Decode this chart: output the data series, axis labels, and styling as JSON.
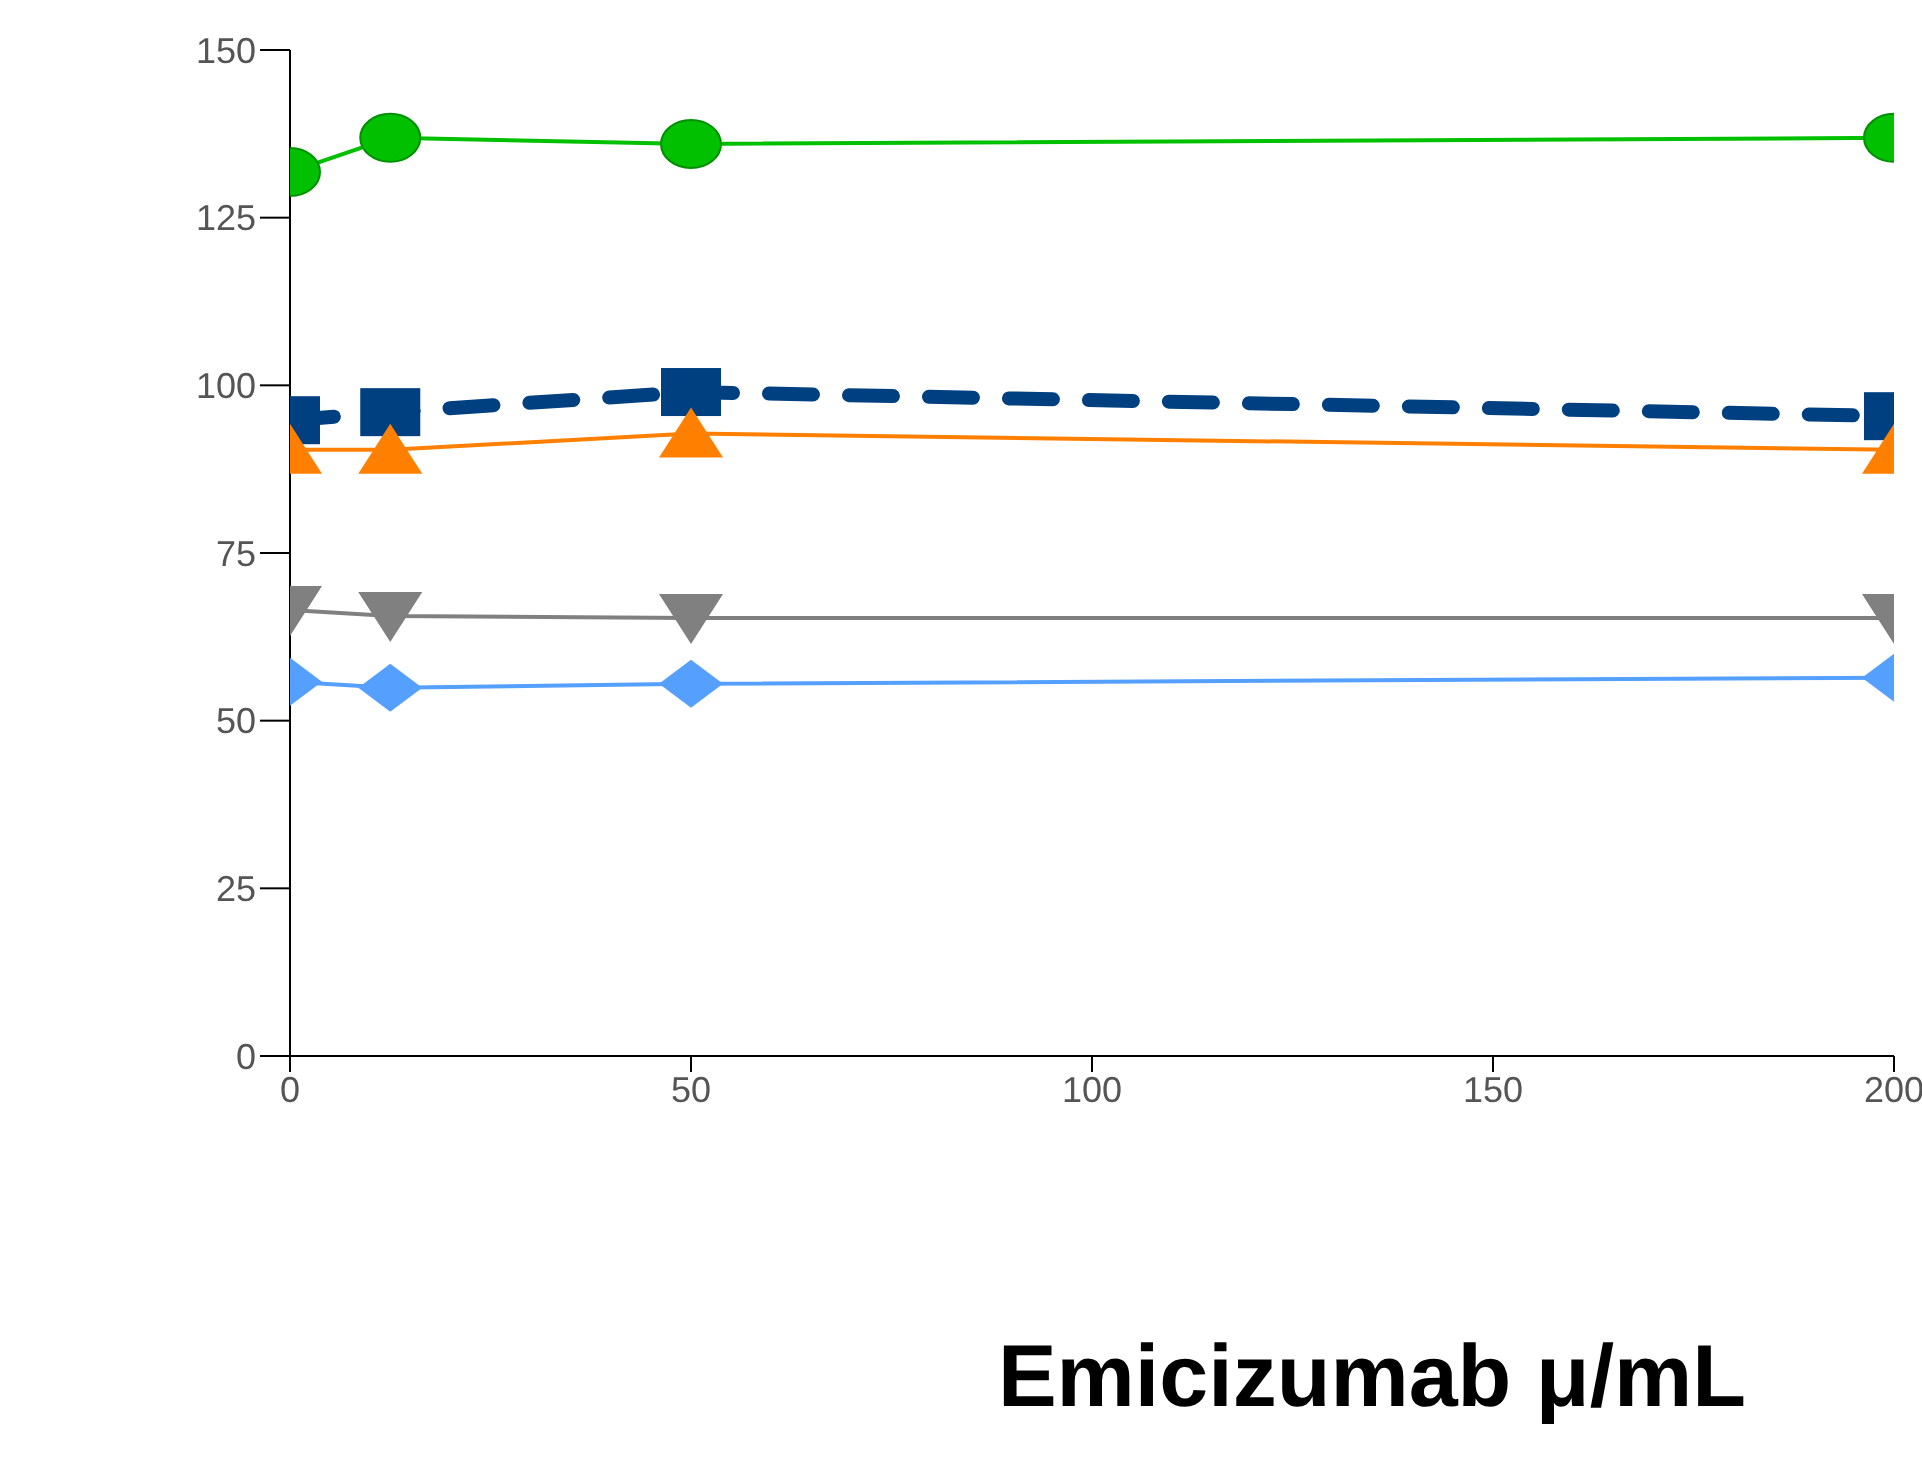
{
  "chart_data": {
    "type": "line",
    "xlabel": "Emicizumab μ/mL",
    "x": [
      0,
      12.5,
      50,
      200
    ],
    "xlim": [
      0,
      200
    ],
    "xticks": [
      0,
      50,
      100,
      150,
      200
    ],
    "ylim": [
      0,
      150
    ],
    "yticks": [
      0,
      25,
      50,
      75,
      100,
      125,
      150
    ],
    "grid": false,
    "legend": false,
    "series": [
      {
        "color": "#00c000",
        "marker": "circle",
        "line_style": "solid",
        "values": [
          131.8,
          136.9,
          136,
          136.9
        ]
      },
      {
        "color": "#003f80",
        "marker": "square",
        "line_style": "dashed",
        "values": [
          94.8,
          96,
          99,
          95.4
        ]
      },
      {
        "color": "#ff8000",
        "marker": "triangle",
        "line_style": "solid",
        "values": [
          90.4,
          90.4,
          92.8,
          90.4
        ]
      },
      {
        "color": "#808080",
        "marker": "triangle-down",
        "line_style": "solid",
        "values": [
          66.5,
          65.6,
          65.3,
          65.3
        ]
      },
      {
        "color": "#55a0ff",
        "marker": "diamond",
        "line_style": "solid",
        "values": [
          55.8,
          54.9,
          55.5,
          56.4
        ]
      }
    ]
  }
}
